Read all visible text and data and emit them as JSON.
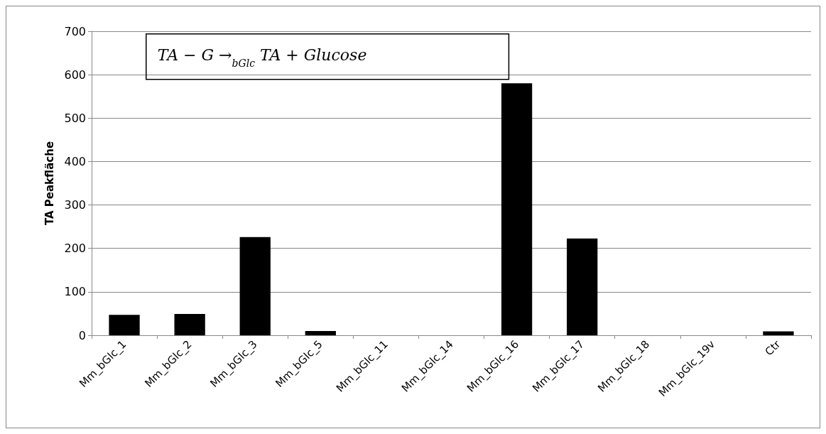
{
  "chart_data": {
    "type": "bar",
    "ylabel": "TA Peakfläche",
    "categories": [
      "Mm_bGlc_1",
      "Mm_bGlc_2",
      "Mm_bGlc_3",
      "Mm_bGlc_5",
      "Mm_bGlc_11",
      "Mm_bGlc_14",
      "Mm_bGlc_16",
      "Mm_bGlc_17",
      "Mm_bGlc_18",
      "Mm_bGlc_19v",
      "Ctr"
    ],
    "values": [
      47,
      49,
      226,
      10,
      0,
      0,
      580,
      223,
      0,
      0,
      9
    ],
    "color": "#000000",
    "ylim": [
      0,
      700
    ],
    "yticks": [
      0,
      100,
      200,
      300,
      400,
      500,
      600,
      700
    ],
    "grid": "y",
    "annotations": [
      "TA − G →$_{bGlc}$ TA + Glucose"
    ]
  }
}
